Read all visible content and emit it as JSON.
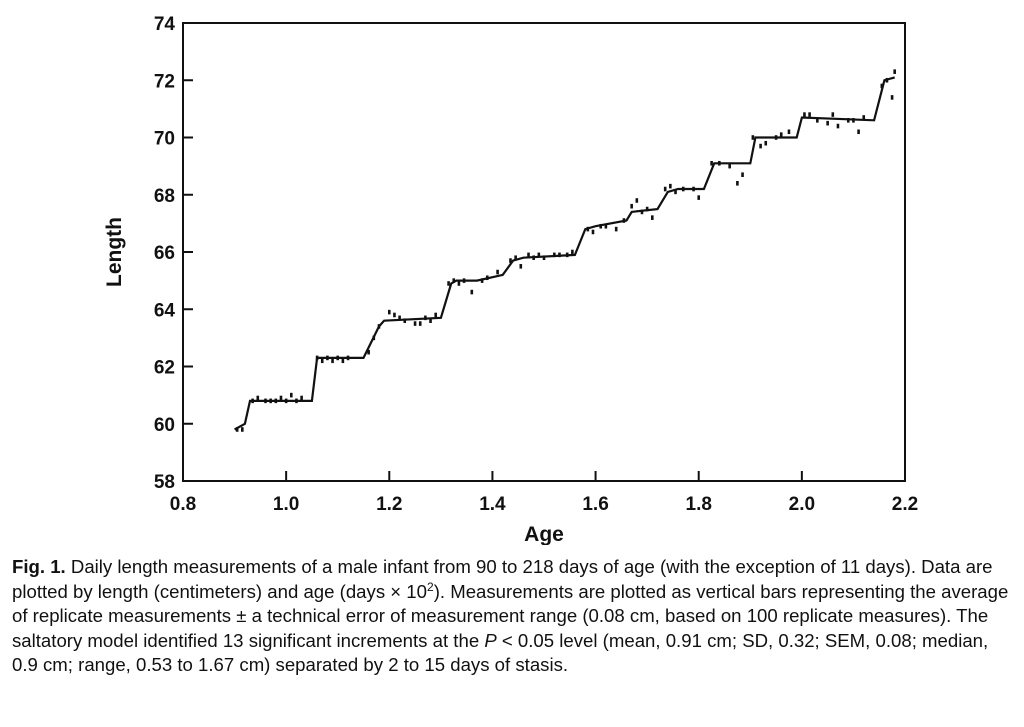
{
  "chart_data": {
    "type": "line",
    "title": "",
    "xlabel": "Age",
    "ylabel": "Length",
    "xlim": [
      0.8,
      2.2
    ],
    "ylim": [
      58,
      74
    ],
    "xticks": [
      0.8,
      1.0,
      1.2,
      1.4,
      1.6,
      1.8,
      2.0,
      2.2
    ],
    "xtick_labels": [
      "0.8",
      "1.0",
      "1.2",
      "1.4",
      "1.6",
      "1.8",
      "2.0",
      "2.2"
    ],
    "yticks": [
      58,
      60,
      62,
      64,
      66,
      68,
      70,
      72,
      74
    ],
    "ytick_labels": [
      "58",
      "60",
      "62",
      "64",
      "66",
      "68",
      "70",
      "72",
      "74"
    ],
    "grid": false,
    "legend": "none",
    "series": [
      {
        "role": "saltatory-step-fit",
        "x": [
          0.9,
          0.92,
          0.93,
          1.05,
          1.06,
          1.15,
          1.18,
          1.19,
          1.3,
          1.32,
          1.33,
          1.37,
          1.42,
          1.44,
          1.46,
          1.56,
          1.58,
          1.6,
          1.66,
          1.67,
          1.72,
          1.74,
          1.76,
          1.81,
          1.83,
          1.9,
          1.91,
          1.99,
          2.0,
          2.14,
          2.16,
          2.18
        ],
        "y": [
          59.8,
          60.0,
          60.8,
          60.8,
          62.3,
          62.3,
          63.4,
          63.6,
          63.7,
          64.9,
          65.0,
          65.0,
          65.2,
          65.7,
          65.8,
          65.9,
          66.8,
          66.9,
          67.1,
          67.4,
          67.5,
          68.1,
          68.2,
          68.2,
          69.1,
          69.1,
          70.0,
          70.0,
          70.7,
          70.6,
          72.0,
          72.1
        ]
      },
      {
        "role": "daily-measurements",
        "x": [
          0.905,
          0.915,
          0.935,
          0.945,
          0.96,
          0.97,
          0.98,
          0.99,
          1.0,
          1.01,
          1.02,
          1.03,
          1.06,
          1.07,
          1.08,
          1.09,
          1.1,
          1.11,
          1.12,
          1.16,
          1.17,
          1.18,
          1.2,
          1.21,
          1.22,
          1.23,
          1.25,
          1.26,
          1.27,
          1.28,
          1.29,
          1.315,
          1.325,
          1.335,
          1.345,
          1.36,
          1.38,
          1.39,
          1.41,
          1.435,
          1.445,
          1.455,
          1.47,
          1.48,
          1.49,
          1.5,
          1.52,
          1.53,
          1.545,
          1.555,
          1.585,
          1.595,
          1.61,
          1.62,
          1.64,
          1.655,
          1.67,
          1.68,
          1.69,
          1.7,
          1.71,
          1.735,
          1.745,
          1.755,
          1.77,
          1.79,
          1.8,
          1.825,
          1.84,
          1.86,
          1.875,
          1.885,
          1.905,
          1.92,
          1.93,
          1.95,
          1.96,
          1.975,
          2.005,
          2.015,
          2.03,
          2.05,
          2.06,
          2.07,
          2.09,
          2.1,
          2.11,
          2.12,
          2.155,
          2.165,
          2.175,
          2.18
        ],
        "y": [
          59.8,
          59.8,
          60.8,
          60.9,
          60.8,
          60.8,
          60.8,
          60.9,
          60.8,
          61.0,
          60.8,
          60.9,
          62.3,
          62.2,
          62.3,
          62.2,
          62.3,
          62.2,
          62.3,
          62.5,
          63.0,
          63.4,
          63.9,
          63.8,
          63.7,
          63.6,
          63.5,
          63.5,
          63.7,
          63.6,
          63.8,
          64.9,
          65.0,
          64.9,
          65.0,
          64.6,
          65.0,
          65.1,
          65.3,
          65.7,
          65.8,
          65.5,
          65.9,
          65.8,
          65.9,
          65.8,
          65.9,
          65.9,
          65.9,
          66.0,
          66.8,
          66.7,
          66.9,
          66.9,
          66.8,
          67.1,
          67.6,
          67.8,
          67.4,
          67.5,
          67.2,
          68.2,
          68.3,
          68.1,
          68.2,
          68.2,
          67.9,
          69.1,
          69.1,
          69.0,
          68.4,
          68.7,
          70.0,
          69.7,
          69.8,
          70.0,
          70.1,
          70.2,
          70.8,
          70.8,
          70.6,
          70.5,
          70.8,
          70.4,
          70.6,
          70.6,
          70.2,
          70.7,
          71.8,
          72.0,
          71.4,
          72.3
        ]
      }
    ]
  },
  "caption": {
    "label": "Fig. 1.",
    "text_before_sup": " Daily length measurements of a male infant from 90 to 218 days of age (with the exception of 11 days). Data are plotted by length (centimeters) and age (days × 10",
    "sup": "2",
    "text_before_p": "). Measurements are plotted as vertical bars representing the average of replicate measurements ± a technical error of measurement range (0.08 cm, based on 100 replicate measures). The saltatory model identified 13 significant increments at the ",
    "p_symbol": "P",
    "text_after_p": " < 0.05 level (mean, 0.91 cm; SD, 0.32; SEM, 0.08; median, 0.9 cm; range, 0.53 to 1.67 cm) separated by 2 to 15 days of stasis."
  },
  "styles": {
    "ink": "#111111",
    "background": "#ffffff"
  }
}
